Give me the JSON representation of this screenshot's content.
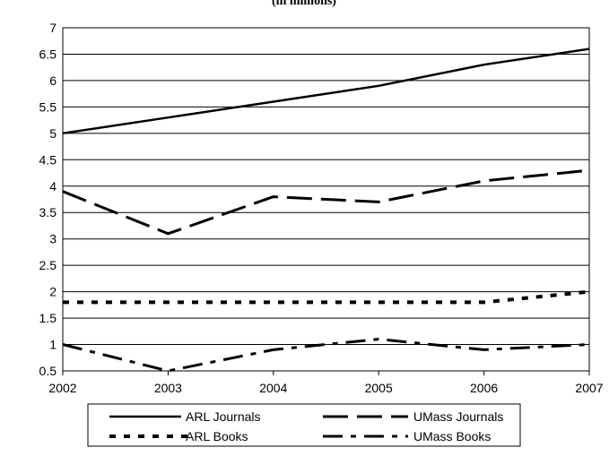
{
  "chart_data": {
    "type": "line",
    "title": "(in millions)",
    "xlabel": "",
    "ylabel": "",
    "x": [
      "2002",
      "2003",
      "2004",
      "2005",
      "2006",
      "2007"
    ],
    "ylim": [
      0.5,
      7
    ],
    "yticks": [
      "0.5",
      "1",
      "1.5",
      "2",
      "2.5",
      "3",
      "3.5",
      "4",
      "4.5",
      "5",
      "5.5",
      "6",
      "6.5",
      "7"
    ],
    "grid": true,
    "legend_position": "bottom",
    "series": [
      {
        "name": "ARL Journals",
        "values": [
          5.0,
          5.3,
          5.6,
          5.9,
          6.3,
          6.6
        ],
        "color": "#000000",
        "style": "solid"
      },
      {
        "name": "UMass Journals",
        "values": [
          3.9,
          3.1,
          3.8,
          3.7,
          4.1,
          4.3
        ],
        "color": "#000000",
        "style": "long-dash"
      },
      {
        "name": "ARL Books",
        "values": [
          1.8,
          1.8,
          1.8,
          1.8,
          1.8,
          2.0
        ],
        "color": "#000000",
        "style": "square-dot"
      },
      {
        "name": "UMass Books",
        "values": [
          1.0,
          0.5,
          0.9,
          1.1,
          0.9,
          1.0
        ],
        "color": "#000000",
        "style": "dash-dot"
      }
    ]
  }
}
